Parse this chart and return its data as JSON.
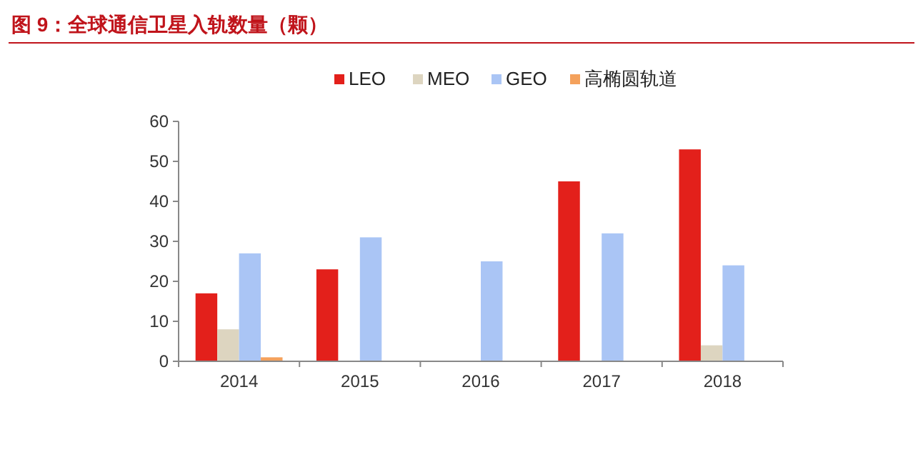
{
  "chart_data": {
    "type": "bar",
    "title": "图 9：全球通信卫星入轨数量（颗）",
    "categories": [
      "2014",
      "2015",
      "2016",
      "2017",
      "2018"
    ],
    "series": [
      {
        "name": "LEO",
        "color": "#e3201b",
        "values": [
          17,
          23,
          null,
          45,
          53
        ]
      },
      {
        "name": "MEO",
        "color": "#ddd5c0",
        "values": [
          8,
          null,
          null,
          null,
          4
        ]
      },
      {
        "name": "GEO",
        "color": "#aac5f5",
        "values": [
          27,
          31,
          25,
          32,
          24
        ]
      },
      {
        "name": "高椭圆轨道",
        "color": "#f4a15c",
        "values": [
          1,
          null,
          null,
          null,
          null
        ]
      }
    ],
    "ylim": [
      0,
      60
    ],
    "yticks": [
      0,
      10,
      20,
      30,
      40,
      50,
      60
    ],
    "grid": false,
    "legend": "top"
  }
}
